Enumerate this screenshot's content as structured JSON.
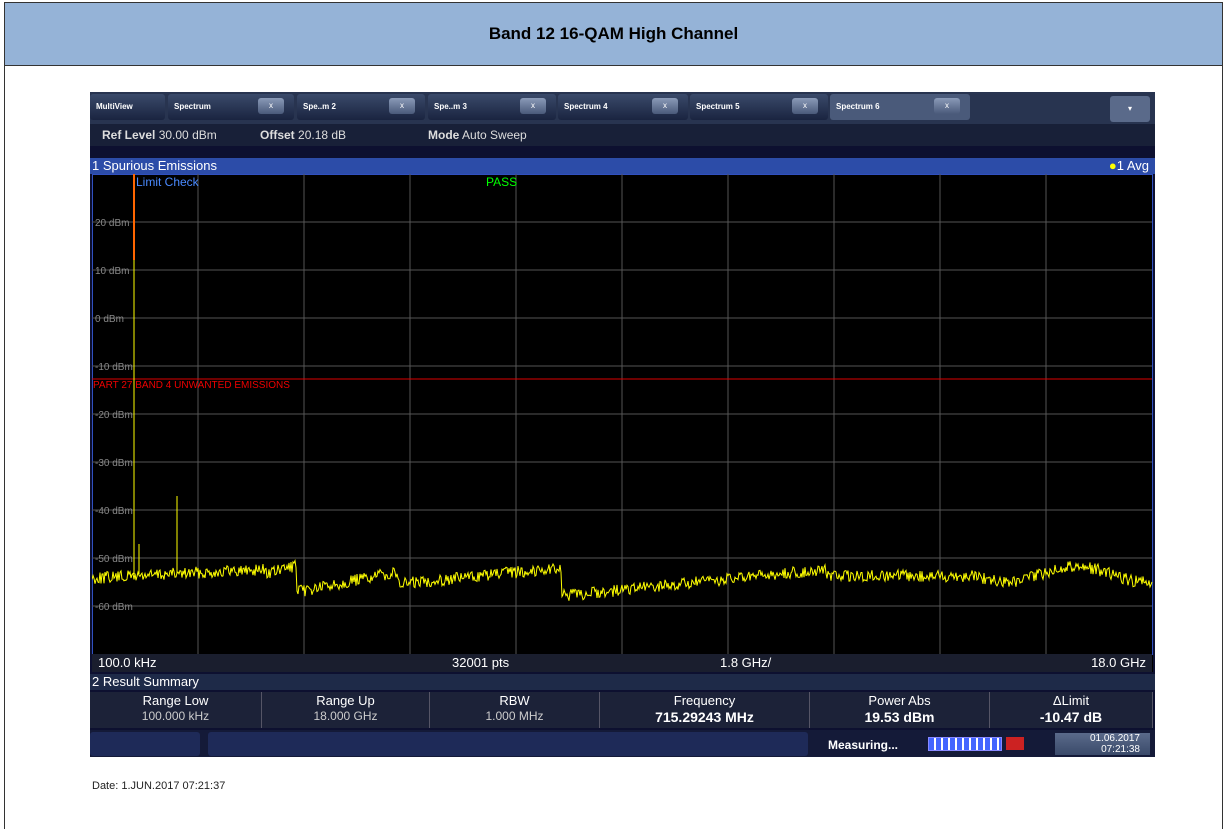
{
  "header": {
    "title": "Band 12 16-QAM High Channel"
  },
  "tabs": [
    {
      "label": "MultiView"
    },
    {
      "label": "Spectrum"
    },
    {
      "label": "Spe..m 2"
    },
    {
      "label": "Spe..m 3"
    },
    {
      "label": "Spectrum 4"
    },
    {
      "label": "Spectrum 5"
    },
    {
      "label": "Spectrum 6"
    }
  ],
  "tab_close": "x",
  "settings": {
    "ref_level_label": "Ref Level",
    "ref_level": "30.00 dBm",
    "offset_label": "Offset",
    "offset": "20.18 dB",
    "mode_label": "Mode",
    "mode": "Auto Sweep"
  },
  "panel": {
    "title": "1 Spurious Emissions",
    "trace": "1 Avg",
    "limit_check": "Limit Check",
    "result": "PASS",
    "limit_line": "PART 27 BAND 4 UNWANTED EMISSIONS",
    "y_labels": [
      "20 dBm",
      "10 dBm",
      "0 dBm",
      "-10 dBm",
      "-20 dBm",
      "-30 dBm",
      "-40 dBm",
      "-50 dBm",
      "-60 dBm"
    ],
    "start": "100.0 kHz",
    "points": "32001 pts",
    "span": "1.8 GHz/",
    "stop": "18.0 GHz"
  },
  "summary": {
    "title": "2 Result Summary",
    "columns": [
      {
        "header": "Range Low",
        "value": "100.000 kHz"
      },
      {
        "header": "Range Up",
        "value": "18.000 GHz"
      },
      {
        "header": "RBW",
        "value": "1.000 MHz"
      },
      {
        "header": "Frequency",
        "value": "715.29243 MHz"
      },
      {
        "header": "Power Abs",
        "value": "19.53 dBm"
      },
      {
        "header": "ΔLimit",
        "value": "-10.47 dB"
      }
    ]
  },
  "status": {
    "state": "Measuring...",
    "date": "01.06.2017",
    "time": "07:21:38"
  },
  "footer": {
    "date": "Date: 1.JUN.2017  07:21:37"
  }
}
